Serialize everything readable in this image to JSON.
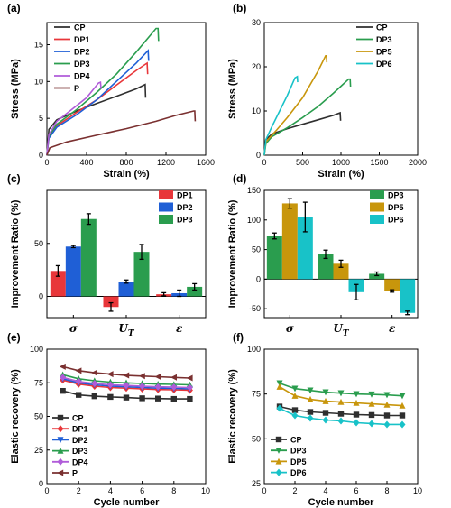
{
  "colors": {
    "CP": "#2f2f2f",
    "DP1": "#e8363a",
    "DP2": "#1f5fd6",
    "DP3": "#2a9d4e",
    "DP4": "#b05cd9",
    "DP5": "#c8960c",
    "DP6": "#18c2c8",
    "P": "#7a3030"
  },
  "chart_data": [
    {
      "panel": "(a)",
      "type": "line",
      "xlabel": "Strain (%)",
      "ylabel": "Stress (MPa)",
      "xlim": [
        0,
        1600
      ],
      "ylim": [
        0,
        18
      ],
      "xticks": [
        0,
        400,
        800,
        1200,
        1600
      ],
      "yticks": [
        0,
        5,
        10,
        15
      ],
      "legend_position": "top-left",
      "series": [
        {
          "name": "CP",
          "color_key": "CP",
          "points": [
            [
              0,
              0
            ],
            [
              20,
              3.5
            ],
            [
              100,
              4.8
            ],
            [
              300,
              6.0
            ],
            [
              500,
              7.0
            ],
            [
              700,
              8.0
            ],
            [
              900,
              9.0
            ],
            [
              990,
              9.6
            ],
            [
              995,
              7.8
            ]
          ]
        },
        {
          "name": "DP1",
          "color_key": "DP1",
          "points": [
            [
              0,
              0
            ],
            [
              20,
              2.5
            ],
            [
              100,
              4.0
            ],
            [
              300,
              5.8
            ],
            [
              500,
              7.5
            ],
            [
              700,
              9.5
            ],
            [
              900,
              11.5
            ],
            [
              1010,
              12.5
            ],
            [
              1015,
              11.0
            ]
          ]
        },
        {
          "name": "DP2",
          "color_key": "DP2",
          "points": [
            [
              0,
              0
            ],
            [
              20,
              2.3
            ],
            [
              100,
              3.8
            ],
            [
              300,
              5.5
            ],
            [
              500,
              7.5
            ],
            [
              700,
              10.0
            ],
            [
              900,
              12.5
            ],
            [
              1020,
              14.2
            ],
            [
              1025,
              12.8
            ]
          ]
        },
        {
          "name": "DP3",
          "color_key": "DP3",
          "points": [
            [
              0,
              0
            ],
            [
              20,
              2.6
            ],
            [
              100,
              4.2
            ],
            [
              300,
              6.2
            ],
            [
              500,
              8.5
            ],
            [
              700,
              11.0
            ],
            [
              900,
              14.0
            ],
            [
              1100,
              17.2
            ],
            [
              1120,
              17.2
            ],
            [
              1125,
              15.5
            ]
          ]
        },
        {
          "name": "DP4",
          "color_key": "DP4",
          "points": [
            [
              0,
              0
            ],
            [
              20,
              2.8
            ],
            [
              100,
              4.6
            ],
            [
              250,
              6.2
            ],
            [
              400,
              7.8
            ],
            [
              520,
              9.8
            ],
            [
              540,
              9.9
            ],
            [
              545,
              9.0
            ]
          ]
        },
        {
          "name": "P",
          "color_key": "P",
          "points": [
            [
              0,
              0
            ],
            [
              30,
              1.0
            ],
            [
              200,
              1.8
            ],
            [
              500,
              2.7
            ],
            [
              800,
              3.6
            ],
            [
              1100,
              4.6
            ],
            [
              1300,
              5.4
            ],
            [
              1480,
              6.0
            ],
            [
              1490,
              6.0
            ],
            [
              1495,
              4.6
            ]
          ]
        }
      ]
    },
    {
      "panel": "(b)",
      "type": "line",
      "xlabel": "Strain (%)",
      "ylabel": "Stress (MPa)",
      "xlim": [
        0,
        2000
      ],
      "ylim": [
        0,
        30
      ],
      "xticks": [
        0,
        500,
        1000,
        1500,
        2000
      ],
      "yticks": [
        0,
        10,
        20,
        30
      ],
      "legend_position": "top-right",
      "series": [
        {
          "name": "CP",
          "color_key": "CP",
          "points": [
            [
              0,
              0
            ],
            [
              20,
              3.5
            ],
            [
              100,
              4.8
            ],
            [
              300,
              6.0
            ],
            [
              500,
              7.0
            ],
            [
              700,
              8.0
            ],
            [
              900,
              9.0
            ],
            [
              990,
              9.6
            ],
            [
              995,
              7.8
            ]
          ]
        },
        {
          "name": "DP3",
          "color_key": "DP3",
          "points": [
            [
              0,
              0
            ],
            [
              20,
              2.6
            ],
            [
              100,
              4.2
            ],
            [
              300,
              6.2
            ],
            [
              500,
              8.5
            ],
            [
              700,
              11.0
            ],
            [
              900,
              14.0
            ],
            [
              1100,
              17.2
            ],
            [
              1120,
              17.2
            ],
            [
              1125,
              15.5
            ]
          ]
        },
        {
          "name": "DP5",
          "color_key": "DP5",
          "points": [
            [
              0,
              0
            ],
            [
              20,
              3.0
            ],
            [
              150,
              5.5
            ],
            [
              300,
              8.5
            ],
            [
              500,
              13.0
            ],
            [
              700,
              19.0
            ],
            [
              800,
              22.5
            ],
            [
              810,
              22.5
            ],
            [
              815,
              21.0
            ]
          ]
        },
        {
          "name": "DP6",
          "color_key": "DP6",
          "points": [
            [
              0,
              0
            ],
            [
              20,
              3.5
            ],
            [
              100,
              6.5
            ],
            [
              200,
              10.0
            ],
            [
              300,
              13.5
            ],
            [
              400,
              17.5
            ],
            [
              430,
              17.8
            ],
            [
              435,
              16.5
            ]
          ]
        }
      ]
    },
    {
      "panel": "(c)",
      "type": "bar",
      "ylabel": "Improvement Ratio (%)",
      "ylim": [
        -20,
        100
      ],
      "yticks": [
        0,
        50
      ],
      "categories": [
        "σ",
        "U_T",
        "ε"
      ],
      "category_labels": [
        {
          "main": "σ",
          "sub": ""
        },
        {
          "main": "U",
          "sub": "T"
        },
        {
          "main": "ε",
          "sub": ""
        }
      ],
      "legend_position": "top-right",
      "series": [
        {
          "name": "DP1",
          "color_key": "DP1",
          "values": [
            24,
            -10,
            2
          ],
          "errors": [
            5,
            4,
            1.5
          ]
        },
        {
          "name": "DP2",
          "color_key": "DP2",
          "values": [
            47,
            14,
            3
          ],
          "errors": [
            1,
            1.5,
            3
          ]
        },
        {
          "name": "DP3",
          "color_key": "DP3",
          "values": [
            73,
            42,
            9
          ],
          "errors": [
            5,
            7,
            3
          ]
        }
      ]
    },
    {
      "panel": "(d)",
      "type": "bar",
      "ylabel": "Improvement Ratio (%)",
      "ylim": [
        -65,
        150
      ],
      "yticks": [
        -50,
        0,
        50,
        100,
        150
      ],
      "categories": [
        "σ",
        "U_T",
        "ε"
      ],
      "category_labels": [
        {
          "main": "σ",
          "sub": ""
        },
        {
          "main": "U",
          "sub": "T"
        },
        {
          "main": "ε",
          "sub": ""
        }
      ],
      "legend_position": "top-right",
      "series": [
        {
          "name": "DP3",
          "color_key": "DP3",
          "values": [
            73,
            42,
            9
          ],
          "errors": [
            5,
            7,
            3
          ]
        },
        {
          "name": "DP5",
          "color_key": "DP5",
          "values": [
            128,
            26,
            -20
          ],
          "errors": [
            8,
            6,
            2
          ]
        },
        {
          "name": "DP6",
          "color_key": "DP6",
          "values": [
            105,
            -22,
            -57
          ],
          "errors": [
            25,
            13,
            3
          ]
        }
      ]
    },
    {
      "panel": "(e)",
      "type": "line",
      "xlabel": "Cycle number",
      "ylabel": "Elastic recovery (%)",
      "xlim": [
        0,
        10
      ],
      "ylim": [
        0,
        100
      ],
      "xticks": [
        0,
        2,
        4,
        6,
        8,
        10
      ],
      "yticks": [
        0,
        25,
        50,
        75,
        100
      ],
      "legend_position": "bottom-left",
      "series": [
        {
          "name": "CP",
          "color_key": "CP",
          "marker": "square",
          "x": [
            1,
            2,
            3,
            4,
            5,
            6,
            7,
            8,
            9
          ],
          "y": [
            69,
            66,
            65,
            64.5,
            64,
            63.5,
            63.3,
            63,
            63
          ]
        },
        {
          "name": "DP1",
          "color_key": "DP1",
          "marker": "diamond",
          "x": [
            1,
            2,
            3,
            4,
            5,
            6,
            7,
            8,
            9
          ],
          "y": [
            77,
            74,
            72.5,
            71.5,
            71,
            70.5,
            70,
            69.8,
            69.5
          ]
        },
        {
          "name": "DP2",
          "color_key": "DP2",
          "marker": "triangle-down",
          "x": [
            1,
            2,
            3,
            4,
            5,
            6,
            7,
            8,
            9
          ],
          "y": [
            78,
            75,
            73.5,
            72.5,
            72,
            71.5,
            71,
            70.8,
            70.5
          ]
        },
        {
          "name": "DP3",
          "color_key": "DP3",
          "marker": "triangle-up",
          "x": [
            1,
            2,
            3,
            4,
            5,
            6,
            7,
            8,
            9
          ],
          "y": [
            81,
            78,
            76.5,
            75.5,
            75,
            74.5,
            74,
            73.8,
            73.5
          ]
        },
        {
          "name": "DP4",
          "color_key": "DP4",
          "marker": "diamond",
          "x": [
            1,
            2,
            3,
            4,
            5,
            6,
            7,
            8,
            9
          ],
          "y": [
            79,
            76,
            74.5,
            73.5,
            73,
            72.5,
            72,
            71.8,
            71.5
          ]
        },
        {
          "name": "P",
          "color_key": "P",
          "marker": "triangle-left",
          "x": [
            1,
            2,
            3,
            4,
            5,
            6,
            7,
            8,
            9
          ],
          "y": [
            87,
            84,
            82.5,
            81.5,
            80.5,
            80,
            79.5,
            79,
            78.5
          ]
        }
      ]
    },
    {
      "panel": "(f)",
      "type": "line",
      "xlabel": "Cycle number",
      "ylabel": "Elastic recovery (%)",
      "xlim": [
        0,
        10
      ],
      "ylim": [
        25,
        100
      ],
      "xticks": [
        0,
        2,
        4,
        6,
        8,
        10
      ],
      "yticks": [
        25,
        50,
        75,
        100
      ],
      "legend_position": "bottom-left",
      "series": [
        {
          "name": "CP",
          "color_key": "CP",
          "marker": "square",
          "x": [
            1,
            2,
            3,
            4,
            5,
            6,
            7,
            8,
            9
          ],
          "y": [
            68,
            66,
            65,
            64.5,
            64,
            63.5,
            63.3,
            63,
            63
          ]
        },
        {
          "name": "DP3",
          "color_key": "DP3",
          "marker": "triangle-down",
          "x": [
            1,
            2,
            3,
            4,
            5,
            6,
            7,
            8,
            9
          ],
          "y": [
            81,
            78,
            77,
            76,
            75.5,
            75,
            74.8,
            74.5,
            74
          ]
        },
        {
          "name": "DP5",
          "color_key": "DP5",
          "marker": "triangle-up",
          "x": [
            1,
            2,
            3,
            4,
            5,
            6,
            7,
            8,
            9
          ],
          "y": [
            79,
            74,
            72,
            71,
            70.5,
            70,
            69.5,
            69,
            68.5
          ]
        },
        {
          "name": "DP6",
          "color_key": "DP6",
          "marker": "diamond",
          "x": [
            1,
            2,
            3,
            4,
            5,
            6,
            7,
            8,
            9
          ],
          "y": [
            67,
            63,
            61.5,
            60.5,
            60,
            59,
            58.5,
            58,
            58
          ]
        }
      ]
    }
  ]
}
